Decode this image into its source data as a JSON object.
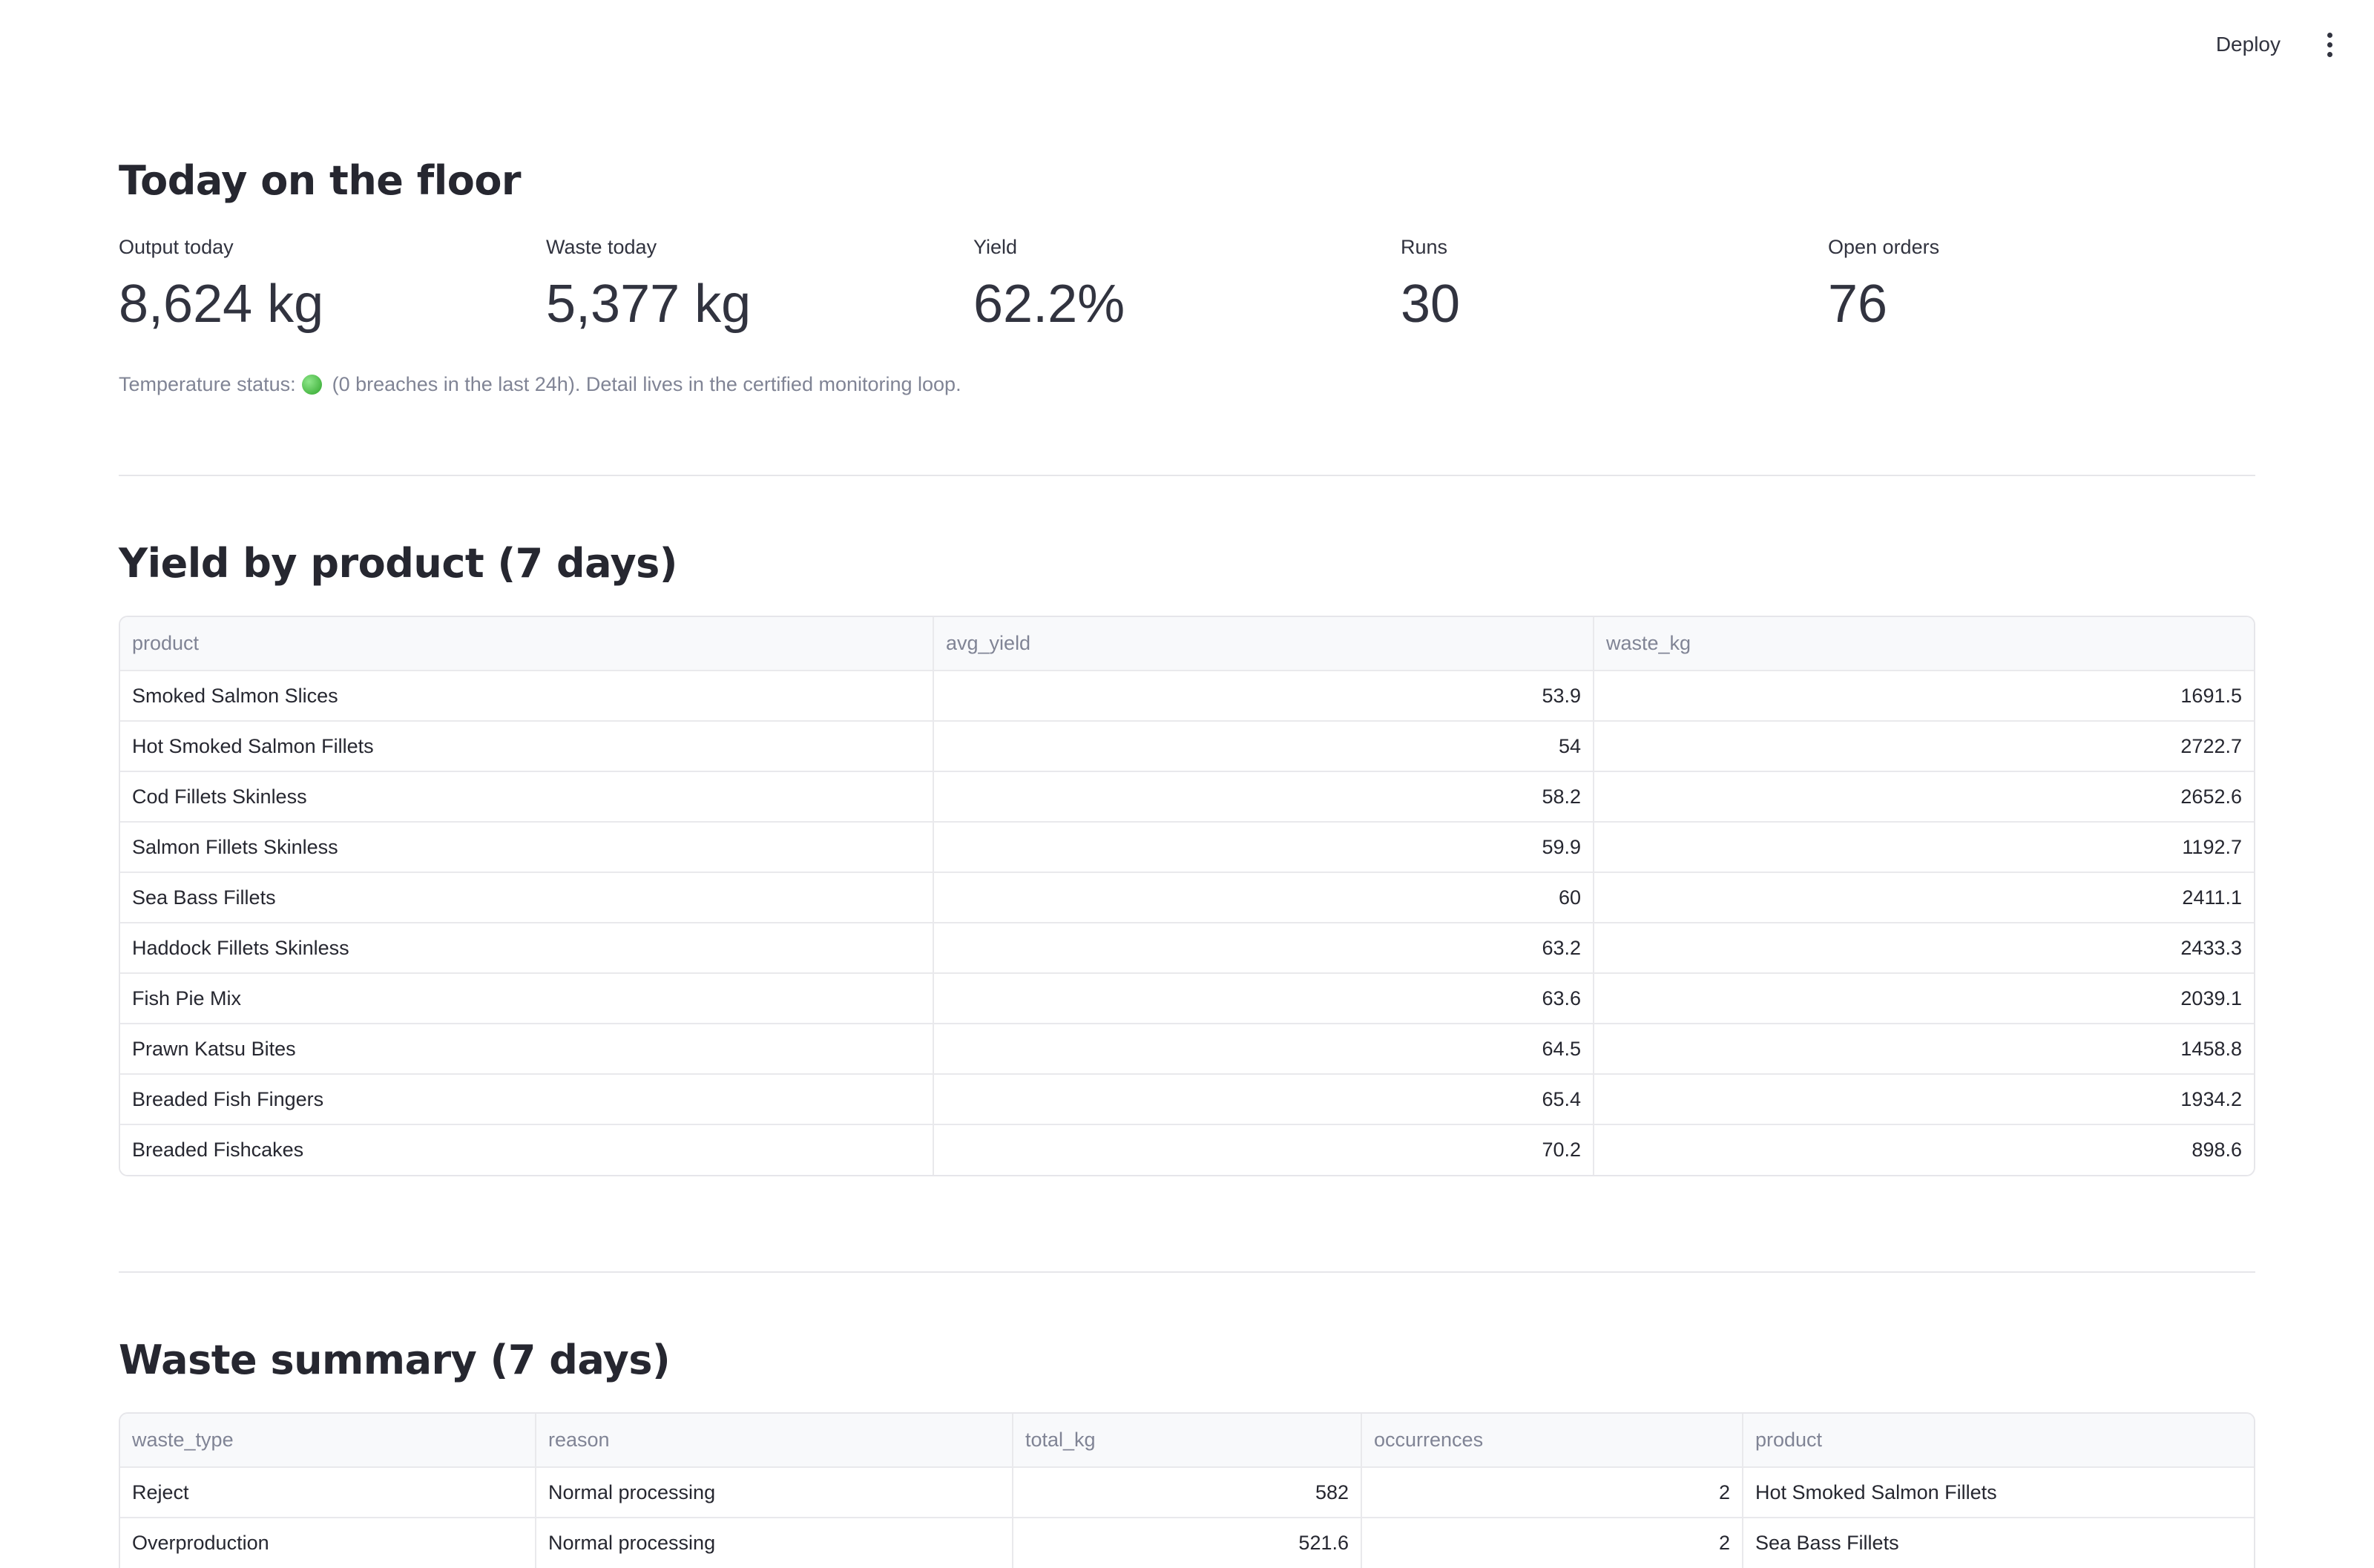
{
  "header": {
    "deploy_label": "Deploy",
    "menu_icon": "kebab-menu-icon"
  },
  "today": {
    "title": "Today on the floor",
    "metrics": [
      {
        "label": "Output today",
        "value": "8,624 kg"
      },
      {
        "label": "Waste today",
        "value": "5,377 kg"
      },
      {
        "label": "Yield",
        "value": "62.2%"
      },
      {
        "label": "Runs",
        "value": "30"
      },
      {
        "label": "Open orders",
        "value": "76"
      }
    ],
    "temp_prefix": "Temperature status:",
    "temp_status_color": "#2ea52a",
    "temp_suffix": "(0 breaches in the last 24h). Detail lives in the certified monitoring loop."
  },
  "yield_table": {
    "title": "Yield by product (7 days)",
    "columns": [
      "product",
      "avg_yield",
      "waste_kg"
    ],
    "rows": [
      [
        "Smoked Salmon Slices",
        "53.9",
        "1691.5"
      ],
      [
        "Hot Smoked Salmon Fillets",
        "54",
        "2722.7"
      ],
      [
        "Cod Fillets Skinless",
        "58.2",
        "2652.6"
      ],
      [
        "Salmon Fillets Skinless",
        "59.9",
        "1192.7"
      ],
      [
        "Sea Bass Fillets",
        "60",
        "2411.1"
      ],
      [
        "Haddock Fillets Skinless",
        "63.2",
        "2433.3"
      ],
      [
        "Fish Pie Mix",
        "63.6",
        "2039.1"
      ],
      [
        "Prawn Katsu Bites",
        "64.5",
        "1458.8"
      ],
      [
        "Breaded Fish Fingers",
        "65.4",
        "1934.2"
      ],
      [
        "Breaded Fishcakes",
        "70.2",
        "898.6"
      ]
    ]
  },
  "waste_table": {
    "title": "Waste summary (7 days)",
    "columns": [
      "waste_type",
      "reason",
      "total_kg",
      "occurrences",
      "product"
    ],
    "rows": [
      [
        "Reject",
        "Normal processing",
        "582",
        "2",
        "Hot Smoked Salmon Fillets"
      ],
      [
        "Overproduction",
        "Normal processing",
        "521.6",
        "2",
        "Sea Bass Fillets"
      ]
    ]
  }
}
